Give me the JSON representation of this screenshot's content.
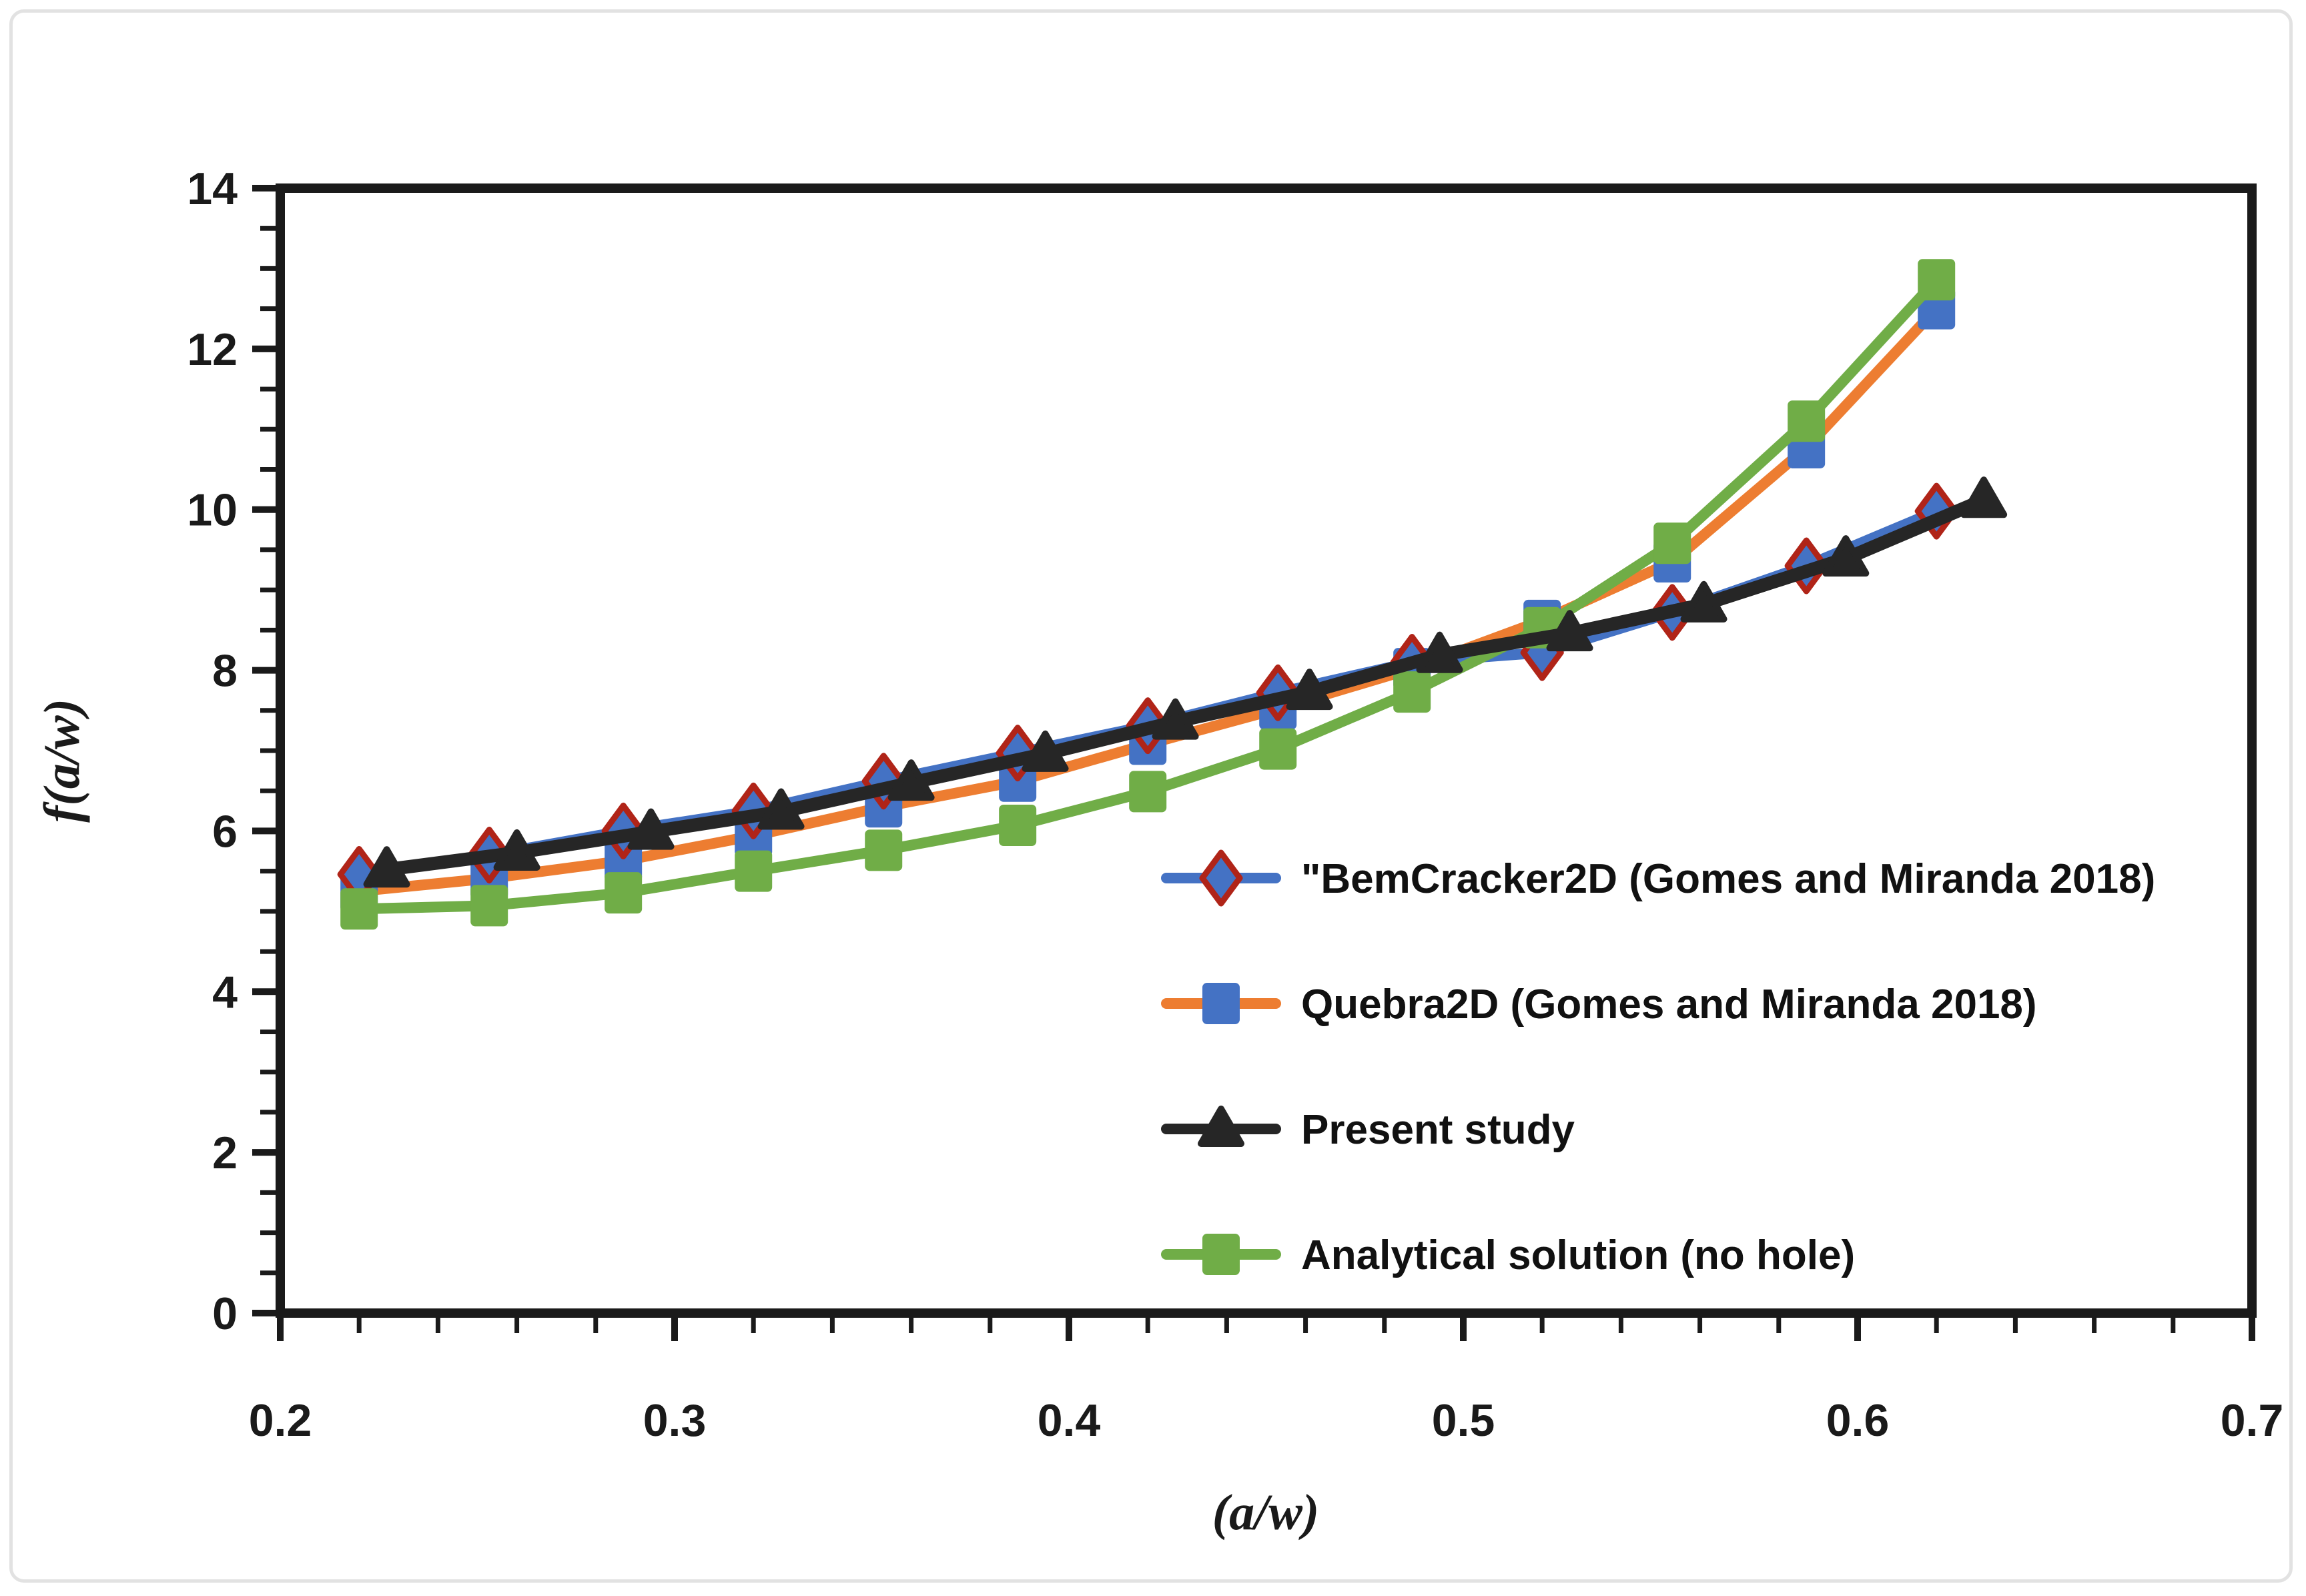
{
  "chart_data": {
    "type": "line",
    "title": "",
    "xlabel": "(a/w)",
    "ylabel": "f(a/w)",
    "xlim": [
      0.2,
      0.7
    ],
    "ylim": [
      0,
      14
    ],
    "x_major_step": 0.1,
    "x_minor_step": 0.02,
    "y_major_step": 2,
    "y_minor_step": 0.5,
    "x_tick_labels": [
      "0.2",
      "0.3",
      "0.4",
      "0.5",
      "0.6",
      "0.7"
    ],
    "y_tick_labels": [
      "0",
      "2",
      "4",
      "6",
      "8",
      "10",
      "12",
      "14"
    ],
    "grid": false,
    "legend_position": "inside-lower-right",
    "axis_color": "#1a1a1a",
    "series": [
      {
        "name": "\"BemCracker2D  (Gomes and Miranda 2018)",
        "marker": "diamond",
        "line_color": "#4472C4",
        "marker_color": "#4472C4",
        "marker_outline": "#B02418",
        "x": [
          0.22,
          0.253,
          0.287,
          0.32,
          0.353,
          0.387,
          0.42,
          0.453,
          0.487,
          0.52,
          0.553,
          0.587,
          0.62
        ],
        "y": [
          5.46,
          5.7,
          6.0,
          6.25,
          6.62,
          6.97,
          7.31,
          7.72,
          8.1,
          8.22,
          8.72,
          9.3,
          9.98
        ]
      },
      {
        "name": "Quebra2D  (Gomes and Miranda 2018)",
        "marker": "square",
        "line_color": "#ED7D31",
        "marker_color": "#4472C4",
        "marker_outline": "none",
        "x": [
          0.22,
          0.253,
          0.287,
          0.32,
          0.353,
          0.387,
          0.42,
          0.453,
          0.487,
          0.52,
          0.553,
          0.587,
          0.62
        ],
        "y": [
          5.25,
          5.41,
          5.63,
          5.94,
          6.3,
          6.62,
          7.08,
          7.52,
          8.02,
          8.62,
          9.35,
          10.77,
          12.5
        ]
      },
      {
        "name": "Present study",
        "marker": "triangle",
        "line_color": "#262626",
        "marker_color": "#262626",
        "marker_outline": "none",
        "x": [
          0.227,
          0.26,
          0.294,
          0.327,
          0.36,
          0.394,
          0.427,
          0.461,
          0.494,
          0.527,
          0.561,
          0.597,
          0.632
        ],
        "y": [
          5.52,
          5.73,
          5.99,
          6.24,
          6.6,
          6.96,
          7.36,
          7.73,
          8.19,
          8.46,
          8.82,
          9.39,
          10.12
        ]
      },
      {
        "name": "Analytical solution (no hole)",
        "marker": "square",
        "line_color": "#70AD47",
        "marker_color": "#70AD47",
        "marker_outline": "none",
        "x": [
          0.22,
          0.253,
          0.287,
          0.32,
          0.353,
          0.387,
          0.42,
          0.453,
          0.487,
          0.52,
          0.553,
          0.587,
          0.62
        ],
        "y": [
          5.03,
          5.07,
          5.23,
          5.5,
          5.76,
          6.07,
          6.49,
          7.02,
          7.73,
          8.53,
          9.58,
          11.1,
          12.86
        ]
      }
    ],
    "draw_order": [
      1,
      0,
      3,
      2
    ]
  }
}
